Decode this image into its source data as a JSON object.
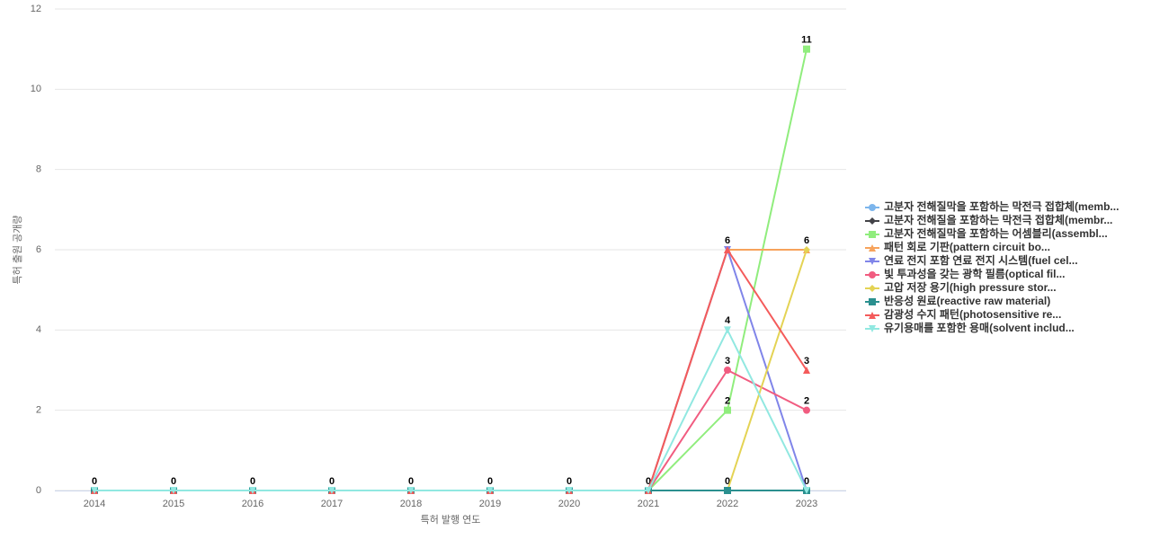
{
  "chart_data": {
    "type": "line",
    "x_label": "특허 발행 연도",
    "y_label": "특허 출원 공개량",
    "categories": [
      "2014",
      "2015",
      "2016",
      "2017",
      "2018",
      "2019",
      "2020",
      "2021",
      "2022",
      "2023"
    ],
    "ylim": [
      0,
      12
    ],
    "yticks": [
      0,
      2,
      4,
      6,
      8,
      10,
      12
    ],
    "grid": true,
    "series": [
      {
        "name": "고분자 전해질막을 포함하는 막전극 접합체(memb...",
        "color": "#7cb5ec",
        "values": [
          0,
          0,
          0,
          0,
          0,
          0,
          0,
          0,
          0,
          0
        ]
      },
      {
        "name": "고분자 전해질을 포함하는 막전극 접합체(membr...",
        "color": "#434348",
        "values": [
          0,
          0,
          0,
          0,
          0,
          0,
          0,
          0,
          0,
          0
        ]
      },
      {
        "name": "고분자 전해질막을 포함하는 어셈블리(assembl...",
        "color": "#90ed7d",
        "values": [
          0,
          0,
          0,
          0,
          0,
          0,
          0,
          0,
          2,
          11
        ]
      },
      {
        "name": "패턴 회로 기판(pattern circuit bo...",
        "color": "#f7a35c",
        "values": [
          0,
          0,
          0,
          0,
          0,
          0,
          0,
          0,
          6,
          6
        ]
      },
      {
        "name": "연료 전지 포함 연료 전지 시스템(fuel cel...",
        "color": "#8085e9",
        "values": [
          0,
          0,
          0,
          0,
          0,
          0,
          0,
          0,
          6,
          0
        ]
      },
      {
        "name": "빛 투과성을 갖는 광학 필름(optical fil...",
        "color": "#f15c80",
        "values": [
          0,
          0,
          0,
          0,
          0,
          0,
          0,
          0,
          3,
          2
        ]
      },
      {
        "name": "고압 저장 용기(high pressure stor...",
        "color": "#e4d354",
        "values": [
          0,
          0,
          0,
          0,
          0,
          0,
          0,
          0,
          0,
          6
        ]
      },
      {
        "name": "반응성 원료(reactive raw material)",
        "color": "#2b908f",
        "values": [
          0,
          0,
          0,
          0,
          0,
          0,
          0,
          0,
          0,
          0
        ]
      },
      {
        "name": "감광성 수지 패턴(photosensitive re...",
        "color": "#f45b5b",
        "values": [
          0,
          0,
          0,
          0,
          0,
          0,
          0,
          0,
          6,
          3
        ]
      },
      {
        "name": "유기용매를 포함한 용매(solvent includ...",
        "color": "#91e8e1",
        "values": [
          0,
          0,
          0,
          0,
          0,
          0,
          0,
          0,
          4,
          0
        ]
      }
    ]
  }
}
